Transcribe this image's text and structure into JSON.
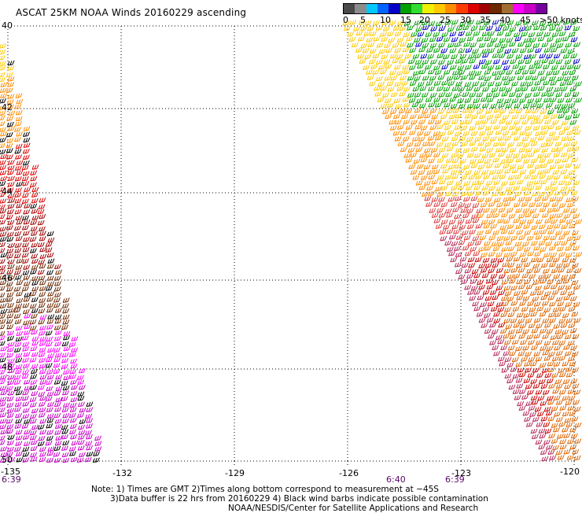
{
  "title": "ASCAT 25KM NOAA Winds 20160229 ascending",
  "legend": {
    "colors": [
      "#4a4a4a",
      "#8c8c8c",
      "#00c8ff",
      "#0064ff",
      "#0000c8",
      "#00a000",
      "#32dc32",
      "#f0f000",
      "#ffc800",
      "#ff8c00",
      "#ff3c00",
      "#dc0000",
      "#a00000",
      "#6e2800",
      "#a06e32",
      "#ff00ff",
      "#c800c8",
      "#7800a0"
    ],
    "ticks": [
      "0",
      "5",
      "10",
      "15",
      "20",
      "25",
      "30",
      "35",
      "40",
      "45",
      ">50 knots"
    ]
  },
  "axes": {
    "lat_labels": [
      "40",
      "42",
      "44",
      "46",
      "48",
      "50"
    ],
    "lon_labels": [
      "-135",
      "-132",
      "-129",
      "-126",
      "-123",
      "-120"
    ],
    "time_labels": [
      "6:39",
      "6:40",
      "6:39"
    ]
  },
  "notes": {
    "line1": "Note: 1) Times are GMT 2)Times along bottom correspond to measurement at −45S",
    "line2": "3)Data buffer is 22 hrs from 20160229 4) Black wind barbs indicate possible contamination",
    "line3": "NOAA/NESDIS/Center for Satellite Applications and Research"
  }
}
